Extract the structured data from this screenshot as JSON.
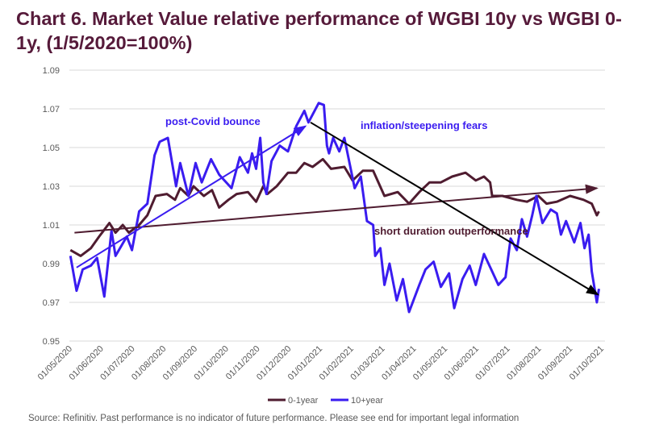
{
  "title": "Chart 6. Market Value relative performance of WGBI 10y vs WGBI 0-1y, (1/5/2020=100%)",
  "source": "Source: Refinitiv. Past performance is no indicator of future performance. Please see end for important legal information",
  "colors": {
    "series_0_1": "#4f1c30",
    "series_10": "#3a1cf0",
    "trend_black": "#000000",
    "grid": "#d9d9d9",
    "title": "#561a3a"
  },
  "chart_data": {
    "type": "line",
    "title": "Chart 6. Market Value relative performance of WGBI 10y vs WGBI 0-1y, (1/5/2020=100%)",
    "xlabel": "",
    "ylabel": "",
    "ylim": [
      0.95,
      1.09
    ],
    "yticks": [
      "1.09",
      "1.07",
      "1.05",
      "1.03",
      "1.01",
      "0.99",
      "0.97",
      "0.95"
    ],
    "xlim": [
      "2020-05-01",
      "2021-10-01"
    ],
    "xticks": [
      "01/05/2020",
      "01/06/2020",
      "01/07/2020",
      "01/08/2020",
      "01/09/2020",
      "01/10/2020",
      "01/11/2020",
      "01/12/2020",
      "01/01/2021",
      "01/02/2021",
      "01/03/2021",
      "01/04/2021",
      "01/05/2021",
      "01/06/2021",
      "01/07/2021",
      "01/08/2021",
      "01/09/2021",
      "01/10/2021"
    ],
    "grid": true,
    "legend": "bottom",
    "series": [
      {
        "name": "0-1year",
        "color": "#4f1c30",
        "points": [
          [
            "2020-05-02",
            0.997
          ],
          [
            "2020-05-12",
            0.994
          ],
          [
            "2020-05-22",
            0.998
          ],
          [
            "2020-05-30",
            1.004
          ],
          [
            "2020-06-09",
            1.011
          ],
          [
            "2020-06-15",
            1.006
          ],
          [
            "2020-06-22",
            1.01
          ],
          [
            "2020-06-28",
            1.006
          ],
          [
            "2020-07-08",
            1.01
          ],
          [
            "2020-07-16",
            1.015
          ],
          [
            "2020-07-24",
            1.025
          ],
          [
            "2020-08-04",
            1.026
          ],
          [
            "2020-08-12",
            1.023
          ],
          [
            "2020-08-17",
            1.029
          ],
          [
            "2020-08-25",
            1.025
          ],
          [
            "2020-08-30",
            1.03
          ],
          [
            "2020-09-09",
            1.025
          ],
          [
            "2020-09-17",
            1.028
          ],
          [
            "2020-09-24",
            1.019
          ],
          [
            "2020-10-03",
            1.023
          ],
          [
            "2020-10-11",
            1.026
          ],
          [
            "2020-10-22",
            1.027
          ],
          [
            "2020-10-30",
            1.022
          ],
          [
            "2020-11-06",
            1.03
          ],
          [
            "2020-11-10",
            1.026
          ],
          [
            "2020-11-19",
            1.03
          ],
          [
            "2020-11-30",
            1.037
          ],
          [
            "2020-12-08",
            1.037
          ],
          [
            "2020-12-16",
            1.042
          ],
          [
            "2020-12-24",
            1.04
          ],
          [
            "2021-01-03",
            1.044
          ],
          [
            "2021-01-11",
            1.039
          ],
          [
            "2021-01-24",
            1.04
          ],
          [
            "2021-02-01",
            1.033
          ],
          [
            "2021-02-11",
            1.038
          ],
          [
            "2021-02-21",
            1.038
          ],
          [
            "2021-03-04",
            1.025
          ],
          [
            "2021-03-17",
            1.027
          ],
          [
            "2021-03-28",
            1.021
          ],
          [
            "2021-04-07",
            1.027
          ],
          [
            "2021-04-17",
            1.032
          ],
          [
            "2021-04-28",
            1.032
          ],
          [
            "2021-05-09",
            1.035
          ],
          [
            "2021-05-22",
            1.037
          ],
          [
            "2021-06-01",
            1.033
          ],
          [
            "2021-06-09",
            1.035
          ],
          [
            "2021-06-15",
            1.032
          ],
          [
            "2021-06-17",
            1.025
          ],
          [
            "2021-06-27",
            1.025
          ],
          [
            "2021-07-11",
            1.023
          ],
          [
            "2021-07-21",
            1.022
          ],
          [
            "2021-08-01",
            1.025
          ],
          [
            "2021-08-09",
            1.021
          ],
          [
            "2021-08-19",
            1.022
          ],
          [
            "2021-09-01",
            1.025
          ],
          [
            "2021-09-14",
            1.023
          ],
          [
            "2021-09-22",
            1.021
          ],
          [
            "2021-09-27",
            1.015
          ],
          [
            "2021-09-29",
            1.017
          ]
        ]
      },
      {
        "name": "10+year",
        "color": "#3a1cf0",
        "points": [
          [
            "2020-05-02",
            0.994
          ],
          [
            "2020-05-08",
            0.976
          ],
          [
            "2020-05-14",
            0.987
          ],
          [
            "2020-05-22",
            0.989
          ],
          [
            "2020-05-28",
            0.993
          ],
          [
            "2020-06-04",
            0.973
          ],
          [
            "2020-06-11",
            1.007
          ],
          [
            "2020-06-15",
            0.994
          ],
          [
            "2020-06-26",
            1.004
          ],
          [
            "2020-07-01",
            0.997
          ],
          [
            "2020-07-08",
            1.017
          ],
          [
            "2020-07-16",
            1.021
          ],
          [
            "2020-07-23",
            1.046
          ],
          [
            "2020-07-28",
            1.053
          ],
          [
            "2020-08-05",
            1.055
          ],
          [
            "2020-08-13",
            1.03
          ],
          [
            "2020-08-17",
            1.042
          ],
          [
            "2020-08-25",
            1.025
          ],
          [
            "2020-09-01",
            1.042
          ],
          [
            "2020-09-07",
            1.032
          ],
          [
            "2020-09-16",
            1.044
          ],
          [
            "2020-09-24",
            1.036
          ],
          [
            "2020-10-06",
            1.029
          ],
          [
            "2020-10-14",
            1.045
          ],
          [
            "2020-10-22",
            1.037
          ],
          [
            "2020-10-26",
            1.047
          ],
          [
            "2020-10-30",
            1.039
          ],
          [
            "2020-11-03",
            1.055
          ],
          [
            "2020-11-06",
            1.032
          ],
          [
            "2020-11-09",
            1.026
          ],
          [
            "2020-11-14",
            1.043
          ],
          [
            "2020-11-22",
            1.051
          ],
          [
            "2020-11-30",
            1.048
          ],
          [
            "2020-12-08",
            1.061
          ],
          [
            "2020-12-16",
            1.069
          ],
          [
            "2020-12-20",
            1.063
          ],
          [
            "2020-12-30",
            1.073
          ],
          [
            "2021-01-04",
            1.072
          ],
          [
            "2021-01-07",
            1.051
          ],
          [
            "2021-01-09",
            1.047
          ],
          [
            "2021-01-13",
            1.055
          ],
          [
            "2021-01-19",
            1.048
          ],
          [
            "2021-01-24",
            1.055
          ],
          [
            "2021-01-29",
            1.042
          ],
          [
            "2021-02-03",
            1.029
          ],
          [
            "2021-02-09",
            1.035
          ],
          [
            "2021-02-15",
            1.012
          ],
          [
            "2021-02-21",
            1.01
          ],
          [
            "2021-02-23",
            0.994
          ],
          [
            "2021-02-28",
            0.998
          ],
          [
            "2021-03-04",
            0.979
          ],
          [
            "2021-03-09",
            0.99
          ],
          [
            "2021-03-16",
            0.971
          ],
          [
            "2021-03-22",
            0.982
          ],
          [
            "2021-03-28",
            0.965
          ],
          [
            "2021-04-07",
            0.979
          ],
          [
            "2021-04-13",
            0.987
          ],
          [
            "2021-04-21",
            0.991
          ],
          [
            "2021-04-28",
            0.978
          ],
          [
            "2021-05-06",
            0.985
          ],
          [
            "2021-05-11",
            0.967
          ],
          [
            "2021-05-19",
            0.982
          ],
          [
            "2021-05-26",
            0.989
          ],
          [
            "2021-06-01",
            0.979
          ],
          [
            "2021-06-09",
            0.995
          ],
          [
            "2021-06-17",
            0.986
          ],
          [
            "2021-06-23",
            0.979
          ],
          [
            "2021-06-30",
            0.983
          ],
          [
            "2021-07-05",
            1.003
          ],
          [
            "2021-07-11",
            0.997
          ],
          [
            "2021-07-16",
            1.013
          ],
          [
            "2021-07-21",
            1.004
          ],
          [
            "2021-07-26",
            1.015
          ],
          [
            "2021-07-30",
            1.025
          ],
          [
            "2021-08-05",
            1.011
          ],
          [
            "2021-08-13",
            1.018
          ],
          [
            "2021-08-19",
            1.016
          ],
          [
            "2021-08-23",
            1.005
          ],
          [
            "2021-08-28",
            1.012
          ],
          [
            "2021-09-05",
            1.001
          ],
          [
            "2021-09-11",
            1.011
          ],
          [
            "2021-09-15",
            0.998
          ],
          [
            "2021-09-19",
            1.005
          ],
          [
            "2021-09-22",
            0.986
          ],
          [
            "2021-09-27",
            0.97
          ],
          [
            "2021-09-29",
            0.977
          ]
        ]
      }
    ],
    "trendlines": [
      {
        "color": "#4f1c30",
        "from": [
          "2020-05-06",
          1.006
        ],
        "to": [
          "2021-09-27",
          1.029
        ],
        "arrow": true
      },
      {
        "color": "#3a1cf0",
        "from": [
          "2020-05-08",
          0.988
        ],
        "to": [
          "2020-12-17",
          1.061
        ],
        "arrow": true
      },
      {
        "color": "#000000",
        "from": [
          "2020-12-22",
          1.063
        ],
        "to": [
          "2021-09-28",
          0.974
        ],
        "arrow": true
      }
    ],
    "annotations": [
      {
        "text": "post-Covid bounce",
        "color": "#3a1cf0"
      },
      {
        "text": "inflation/steepening fears",
        "color": "#3a1cf0"
      },
      {
        "text": "short duration outperformance",
        "color": "#4f1c30"
      }
    ]
  }
}
